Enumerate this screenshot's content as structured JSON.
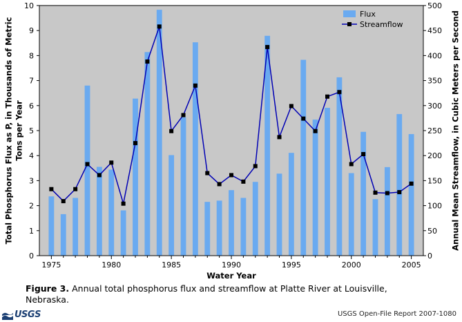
{
  "chart_data": {
    "type": "bar+line",
    "title": "",
    "xlabel": "Water Year",
    "ylabel_left": "Total Phosphorus Flux as P, in Thousands of Metric Tons per Year",
    "ylabel_left_lines": [
      "Total Phosphorus Flux as P, in Thousands of Metric",
      "Tons per Year"
    ],
    "ylabel_right": "Annual Mean Streamflow, in Cubic Meters per Second",
    "xlim": [
      1974,
      2006
    ],
    "ylim_left": [
      0,
      10
    ],
    "ylim_right": [
      0,
      500
    ],
    "x_ticks": [
      1975,
      1980,
      1985,
      1990,
      1995,
      2000,
      2005
    ],
    "y_left_ticks": [
      0,
      1,
      2,
      3,
      4,
      5,
      6,
      7,
      8,
      9,
      10
    ],
    "y_right_ticks": [
      0,
      50,
      100,
      150,
      200,
      250,
      300,
      350,
      400,
      450,
      500
    ],
    "years": [
      1975,
      1976,
      1977,
      1978,
      1979,
      1980,
      1981,
      1982,
      1983,
      1984,
      1985,
      1986,
      1987,
      1988,
      1989,
      1990,
      1991,
      1992,
      1993,
      1994,
      1995,
      1996,
      1997,
      1998,
      1999,
      2000,
      2001,
      2002,
      2003,
      2004,
      2005
    ],
    "series": [
      {
        "name": "Flux",
        "type": "bar",
        "axis": "left",
        "color": "#6aaaf0",
        "values": [
          2.37,
          1.66,
          2.31,
          6.8,
          3.55,
          3.44,
          1.81,
          6.28,
          8.14,
          9.83,
          4.02,
          5.53,
          8.53,
          2.15,
          2.2,
          2.62,
          2.31,
          2.95,
          8.79,
          3.28,
          4.11,
          7.83,
          5.44,
          5.91,
          7.13,
          3.3,
          4.95,
          2.26,
          3.54,
          5.66,
          4.86
        ]
      },
      {
        "name": "Streamflow",
        "type": "line",
        "axis": "right",
        "color": "#0000b4",
        "values": [
          133,
          109,
          133,
          183,
          161,
          186,
          104,
          225,
          388,
          458,
          249,
          281,
          340,
          165,
          143,
          161,
          148,
          179,
          417,
          237,
          299,
          274,
          249,
          318,
          327,
          183,
          203,
          126,
          125,
          127,
          144
        ]
      }
    ],
    "legend": {
      "position": "top-right",
      "entries": [
        "Flux",
        "Streamflow"
      ]
    },
    "grid": false,
    "background": "#c8c8c8"
  },
  "caption": {
    "label": "Figure 3.",
    "text": "Annual total phosphorus flux and streamflow at Platte River at Louisville, Nebraska."
  },
  "footer": {
    "logo_text": "USGS",
    "report": "USGS Open-File Report 2007-1080"
  }
}
